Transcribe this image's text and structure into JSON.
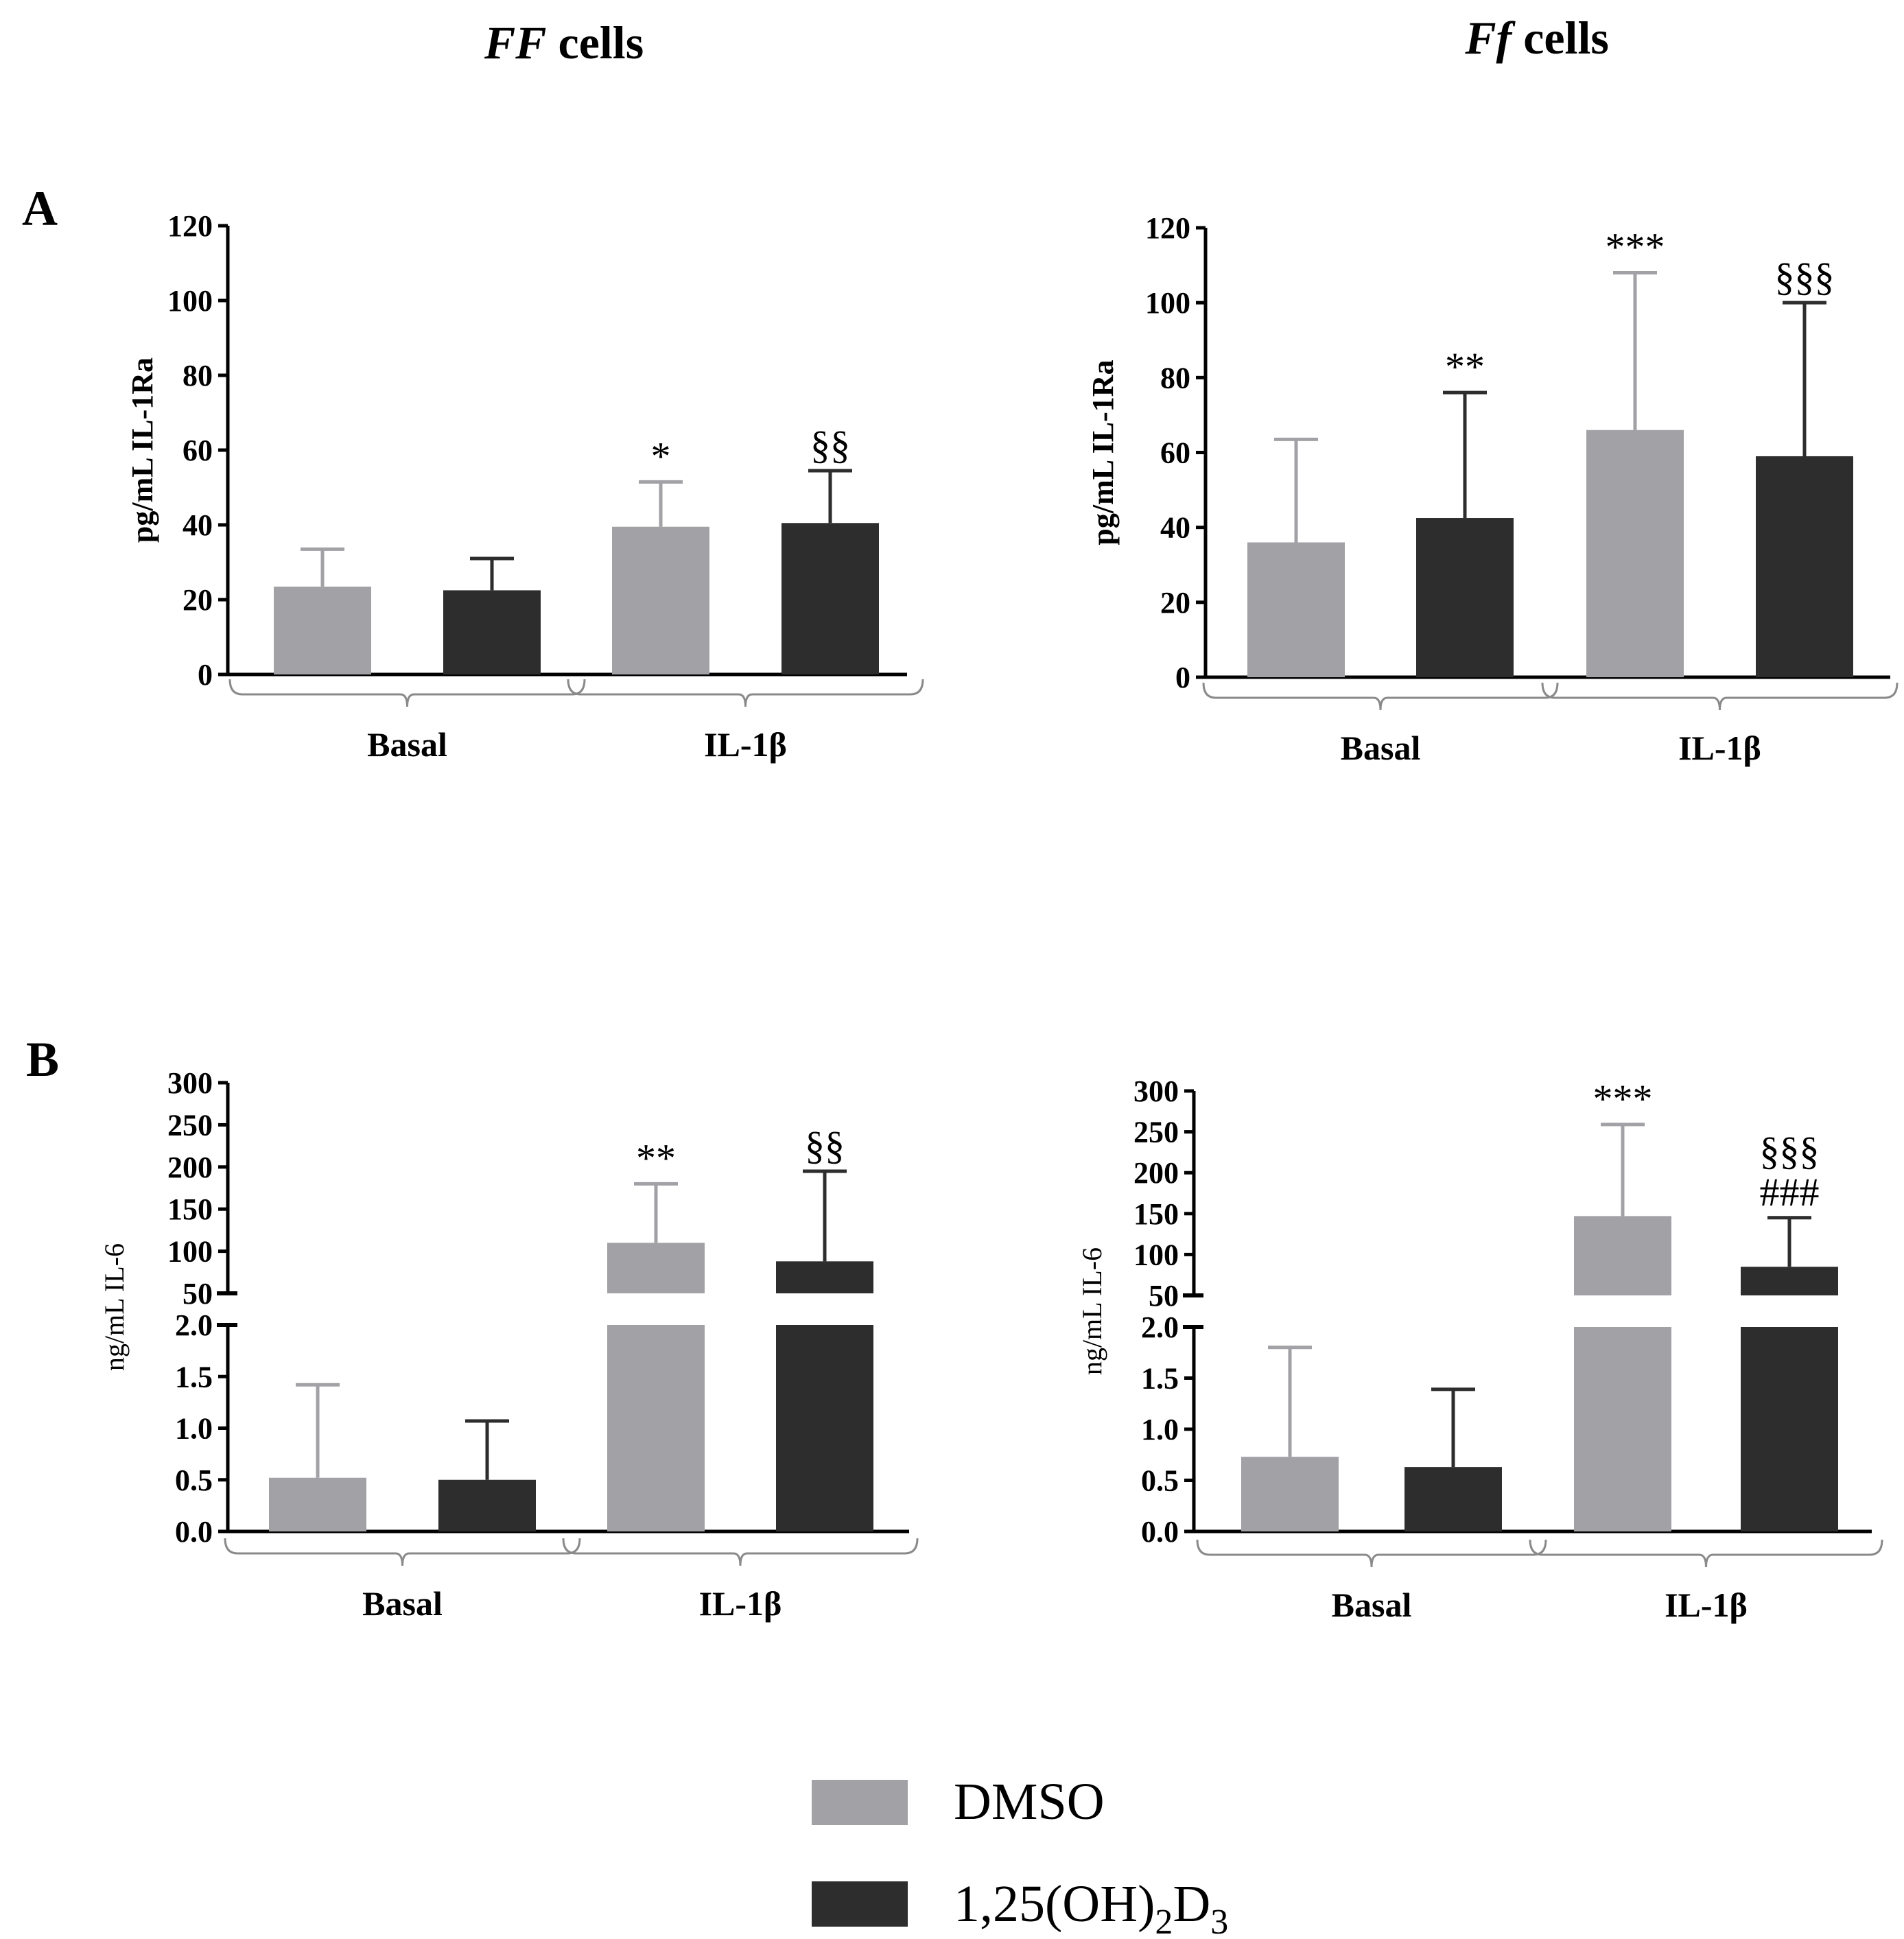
{
  "headers": {
    "left": {
      "italic": "FF",
      "rest": " cells"
    },
    "right": {
      "italic": "Ff",
      "rest": " cells"
    }
  },
  "panel_labels": {
    "a": "A",
    "b": "B"
  },
  "colors": {
    "dmso": "#a2a1a6",
    "vd3": "#2d2d2d",
    "axis": "#000000",
    "brace": "#8a8a8a"
  },
  "legend": {
    "dmso_label": "DMSO",
    "vd3_main": "1,25(OH)",
    "vd3_sub1": "2",
    "vd3_mid": "D",
    "vd3_sub2": "3"
  },
  "chart_data": [
    {
      "id": "A-FF",
      "type": "bar",
      "title": "FF cells",
      "ylabel": "pg/mL IL-1Ra",
      "ylim": [
        0,
        120
      ],
      "yticks": [
        0,
        20,
        40,
        60,
        80,
        100,
        120
      ],
      "groups": [
        "Basal",
        "IL-1β"
      ],
      "series": [
        {
          "name": "DMSO",
          "values": [
            23.5,
            39.5
          ],
          "errors": [
            10.0,
            12.0
          ],
          "annotations": [
            "",
            "*"
          ]
        },
        {
          "name": "1,25(OH)2D3",
          "values": [
            22.5,
            40.5
          ],
          "errors": [
            8.5,
            14.0
          ],
          "annotations": [
            "",
            "§§"
          ]
        }
      ]
    },
    {
      "id": "A-Ff",
      "type": "bar",
      "title": "Ff cells",
      "ylabel": "pg/mL IL-1Ra",
      "ylim": [
        0,
        120
      ],
      "yticks": [
        0,
        20,
        40,
        60,
        80,
        100,
        120
      ],
      "groups": [
        "Basal",
        "IL-1β"
      ],
      "series": [
        {
          "name": "DMSO",
          "values": [
            36.0,
            66.0
          ],
          "errors": [
            27.5,
            42.0
          ],
          "annotations": [
            "",
            "***"
          ]
        },
        {
          "name": "1,25(OH)2D3",
          "values": [
            42.5,
            59.0
          ],
          "errors": [
            33.5,
            41.0
          ],
          "annotations": [
            "**",
            "§§§"
          ]
        }
      ]
    },
    {
      "id": "B-FF",
      "type": "bar",
      "title": "FF cells",
      "ylabel": "ng/mL IL-6",
      "broken_axis": true,
      "lower_ylim": [
        0.0,
        2.0
      ],
      "lower_yticks": [
        "0.0",
        "0.5",
        "1.0",
        "1.5",
        "2.0"
      ],
      "upper_ylim": [
        50,
        300
      ],
      "upper_yticks": [
        "50",
        "100",
        "150",
        "200",
        "250",
        "300"
      ],
      "groups": [
        "Basal",
        "IL-1β"
      ],
      "series": [
        {
          "name": "DMSO",
          "values": [
            0.52,
            110
          ],
          "errors": [
            0.9,
            70
          ],
          "annotations": [
            "",
            "**"
          ]
        },
        {
          "name": "1,25(OH)2D3",
          "values": [
            0.5,
            88
          ],
          "errors": [
            0.57,
            107
          ],
          "annotations": [
            "",
            "§§"
          ]
        }
      ]
    },
    {
      "id": "B-Ff",
      "type": "bar",
      "title": "Ff cells",
      "ylabel": "ng/mL IL-6",
      "broken_axis": true,
      "lower_ylim": [
        0.0,
        2.0
      ],
      "lower_yticks": [
        "0.0",
        "0.5",
        "1.0",
        "1.5",
        "2.0"
      ],
      "upper_ylim": [
        50,
        300
      ],
      "upper_yticks": [
        "50",
        "100",
        "150",
        "200",
        "250",
        "300"
      ],
      "groups": [
        "Basal",
        "IL-1β"
      ],
      "series": [
        {
          "name": "DMSO",
          "values": [
            0.73,
            147
          ],
          "errors": [
            1.07,
            112
          ],
          "annotations": [
            "",
            "***"
          ]
        },
        {
          "name": "1,25(OH)2D3",
          "values": [
            0.63,
            85
          ],
          "errors": [
            0.76,
            60
          ],
          "annotations": [
            "",
            "§§§\n###"
          ]
        }
      ]
    }
  ]
}
